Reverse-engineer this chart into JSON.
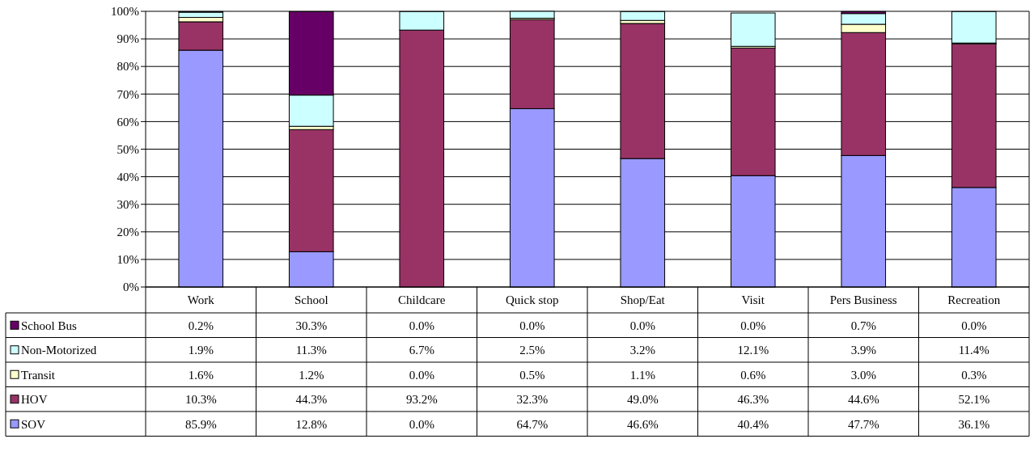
{
  "chart_data": {
    "type": "bar",
    "stacked": true,
    "categories": [
      "Work",
      "School",
      "Childcare",
      "Quick stop",
      "Shop/Eat",
      "Visit",
      "Pers Business",
      "Recreation"
    ],
    "series": [
      {
        "name": "SOV",
        "color": "#9999ff",
        "values": [
          85.9,
          12.8,
          0.0,
          64.7,
          46.6,
          40.4,
          47.7,
          36.1
        ],
        "value_labels": [
          "85.9%",
          "12.8%",
          "0.0%",
          "64.7%",
          "46.6%",
          "40.4%",
          "47.7%",
          "36.1%"
        ]
      },
      {
        "name": "HOV",
        "color": "#993366",
        "values": [
          10.3,
          44.3,
          93.2,
          32.3,
          49.0,
          46.3,
          44.6,
          52.1
        ],
        "value_labels": [
          "10.3%",
          "44.3%",
          "93.2%",
          "32.3%",
          "49.0%",
          "46.3%",
          "44.6%",
          "52.1%"
        ]
      },
      {
        "name": "Transit",
        "color": "#ffffcc",
        "values": [
          1.6,
          1.2,
          0.0,
          0.5,
          1.1,
          0.6,
          3.0,
          0.3
        ],
        "value_labels": [
          "1.6%",
          "1.2%",
          "0.0%",
          "0.5%",
          "1.1%",
          "0.6%",
          "3.0%",
          "0.3%"
        ]
      },
      {
        "name": "Non-Motorized",
        "color": "#ccffff",
        "values": [
          1.9,
          11.3,
          6.7,
          2.5,
          3.2,
          12.1,
          3.9,
          11.4
        ],
        "value_labels": [
          "1.9%",
          "11.3%",
          "6.7%",
          "2.5%",
          "3.2%",
          "12.1%",
          "3.9%",
          "11.4%"
        ]
      },
      {
        "name": "School Bus",
        "color": "#660066",
        "values": [
          0.2,
          30.3,
          0.0,
          0.0,
          0.0,
          0.0,
          0.7,
          0.0
        ],
        "value_labels": [
          "0.2%",
          "30.3%",
          "0.0%",
          "0.0%",
          "0.0%",
          "0.0%",
          "0.7%",
          "0.0%"
        ]
      }
    ],
    "ylim": [
      0,
      100
    ],
    "yticks": [
      {
        "value": 0,
        "label": "0%"
      },
      {
        "value": 10,
        "label": "10%"
      },
      {
        "value": 20,
        "label": "20%"
      },
      {
        "value": 30,
        "label": "30%"
      },
      {
        "value": 40,
        "label": "40%"
      },
      {
        "value": 50,
        "label": "50%"
      },
      {
        "value": 60,
        "label": "60%"
      },
      {
        "value": 70,
        "label": "70%"
      },
      {
        "value": 80,
        "label": "80%"
      },
      {
        "value": 90,
        "label": "90%"
      },
      {
        "value": 100,
        "label": "100%"
      }
    ],
    "grid": "y",
    "legend": "bottom left"
  }
}
